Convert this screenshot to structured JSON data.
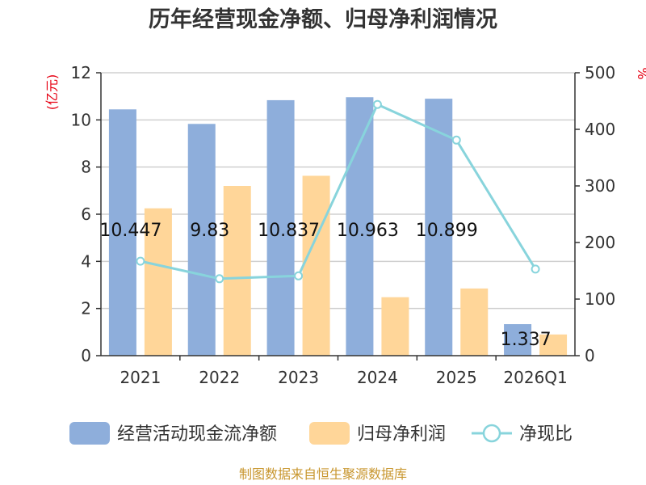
{
  "title": "历年经营现金净额、归母净利润情况",
  "source": "制图数据来自恒生聚源数据库",
  "chart_data": {
    "type": "bar",
    "categories": [
      "2021",
      "2022",
      "2023",
      "2024",
      "2025",
      "2026Q1"
    ],
    "left_axis": {
      "unit_label": "(亿元)",
      "ylim": [
        0,
        12
      ],
      "ticks": [
        "0",
        "2",
        "4",
        "6",
        "8",
        "10",
        "12"
      ]
    },
    "right_axis": {
      "unit_label": "%",
      "ylim": [
        0,
        500
      ],
      "ticks": [
        "0",
        "100",
        "200",
        "300",
        "400",
        "500"
      ]
    },
    "series": [
      {
        "name": "经营活动现金流净额",
        "type": "bar",
        "axis": "left",
        "color": "#8eaedb",
        "values": [
          10.447,
          9.83,
          10.837,
          10.963,
          10.899,
          1.337
        ],
        "labels": [
          "10.447",
          "9.83",
          "10.837",
          "10.963",
          "10.899",
          "1.337"
        ]
      },
      {
        "name": "归母净利润",
        "type": "bar",
        "axis": "left",
        "color": "#ffd699",
        "values": [
          6.25,
          7.2,
          7.63,
          2.48,
          2.85,
          0.9
        ]
      },
      {
        "name": "净现比",
        "type": "line",
        "axis": "right",
        "color": "#88d4dc",
        "values": [
          167,
          136,
          141,
          444,
          381,
          153
        ]
      }
    ],
    "grid": true,
    "legend_position": "bottom"
  }
}
